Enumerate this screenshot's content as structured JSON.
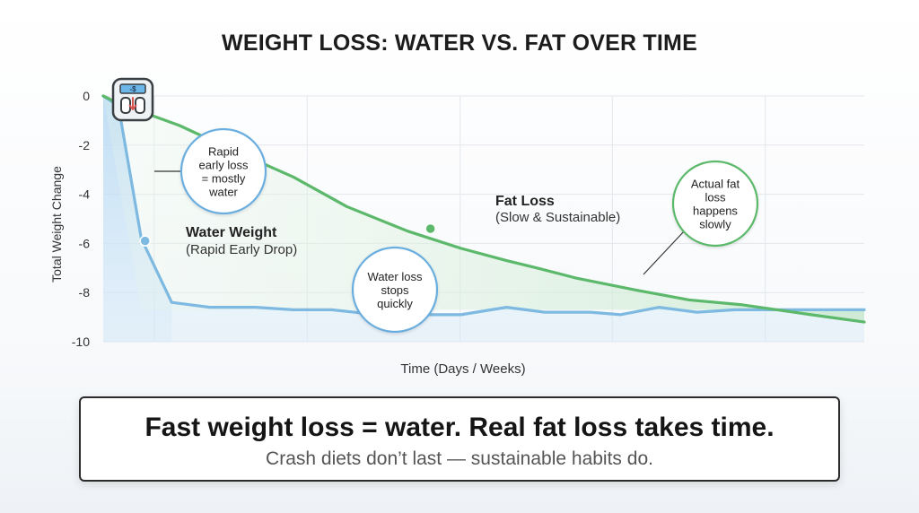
{
  "title": "WEIGHT LOSS: WATER VS. FAT OVER TIME",
  "footer": {
    "headline": "Fast weight loss = water. Real fat loss takes time.",
    "subline": "Crash diets don’t last — sustainable habits do."
  },
  "scale_icon": {
    "icon": "bathroom-scale-icon",
    "display_text": "-$"
  },
  "colors": {
    "water": "#7db9e0",
    "water_fill": "#cfe6f6",
    "fat": "#5cb86a",
    "fat_fill": "#dff1e2",
    "annotation_border": "#6aaee0",
    "fat_annotation_border": "#5cb86a",
    "grid": "#e3e7ec",
    "axis_text": "#333333"
  },
  "chart_data": {
    "type": "line",
    "title": "WEIGHT LOSS: WATER VS. FAT OVER TIME",
    "xlabel": "Time (Days / Weeks)",
    "ylabel": "Total Weight Change",
    "ylim": [
      -10,
      0
    ],
    "yticks": [
      0,
      -2,
      -4,
      -6,
      -8,
      -10
    ],
    "xlim": [
      0,
      100
    ],
    "grid": true,
    "series": [
      {
        "name": "Water Weight",
        "x": [
          0,
          2,
          5,
          9,
          14,
          20,
          25,
          30,
          36,
          42,
          47,
          53,
          58,
          64,
          68,
          73,
          78,
          83,
          88,
          93,
          100
        ],
        "y": [
          0,
          -0.4,
          -5.8,
          -8.4,
          -8.6,
          -8.6,
          -8.7,
          -8.7,
          -8.9,
          -8.9,
          -8.9,
          -8.6,
          -8.8,
          -8.8,
          -8.9,
          -8.6,
          -8.8,
          -8.7,
          -8.7,
          -8.7,
          -8.7
        ]
      },
      {
        "name": "Fat Loss",
        "x": [
          0,
          2,
          10,
          17,
          25,
          32,
          40,
          47,
          53,
          57,
          62,
          70,
          77,
          84,
          93,
          100
        ],
        "y": [
          0,
          -0.3,
          -1.2,
          -2.2,
          -3.3,
          -4.5,
          -5.5,
          -6.2,
          -6.7,
          -7.0,
          -7.4,
          -7.9,
          -8.3,
          -8.5,
          -8.9,
          -9.2
        ]
      }
    ],
    "labels": [
      {
        "series": "Water Weight",
        "title": "Water Weight",
        "subtitle": "(Rapid Early Drop)",
        "x": 5.5,
        "y": -5.9
      },
      {
        "series": "Fat Loss",
        "title": "Fat Loss",
        "subtitle": "(Slow & Sustainable)",
        "x": 43,
        "y": -5.4
      }
    ],
    "annotations": [
      {
        "text": "Rapid early loss = mostly water",
        "lines": [
          "Rapid",
          "early loss",
          "= mostly",
          "water"
        ],
        "style": "water"
      },
      {
        "text": "Water loss stops quickly",
        "lines": [
          "Water loss",
          "stops",
          "quickly"
        ],
        "style": "water"
      },
      {
        "text": "Actual fat loss happens slowly",
        "lines": [
          "Actual fat",
          "loss",
          "happens",
          "slowly"
        ],
        "style": "fat"
      }
    ]
  }
}
